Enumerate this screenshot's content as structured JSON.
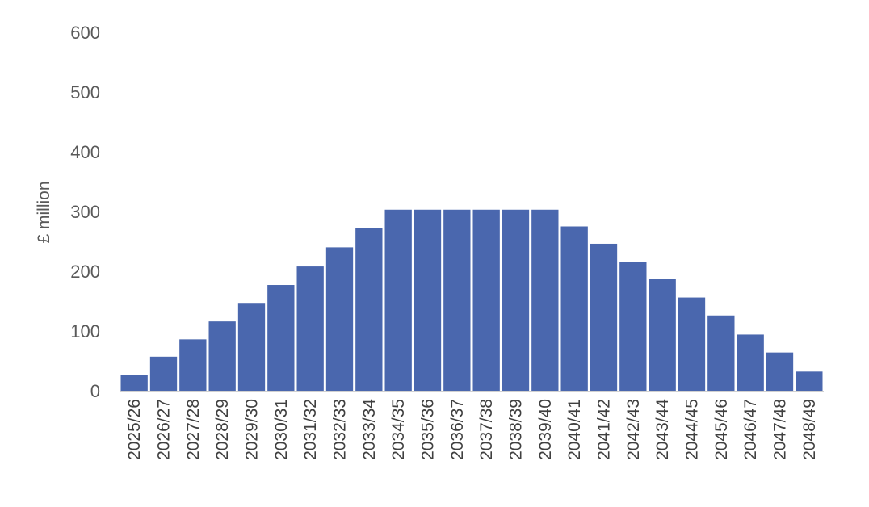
{
  "chart_data": {
    "type": "bar",
    "ylabel": "£ million",
    "ylim": [
      0,
      600
    ],
    "yticks": [
      0,
      100,
      200,
      300,
      400,
      500,
      600
    ],
    "grid": false,
    "bar_color": "#4a67ae",
    "categories": [
      "2025/26",
      "2026/27",
      "2027/28",
      "2028/29",
      "2029/30",
      "2030/31",
      "2031/32",
      "2032/33",
      "2033/34",
      "2034/35",
      "2035/36",
      "2036/37",
      "2037/38",
      "2038/39",
      "2039/40",
      "2040/41",
      "2041/42",
      "2042/43",
      "2043/44",
      "2044/45",
      "2045/46",
      "2046/47",
      "2047/48",
      "2048/49"
    ],
    "values": [
      27,
      57,
      86,
      116,
      147,
      177,
      208,
      240,
      272,
      303,
      303,
      303,
      303,
      303,
      303,
      275,
      246,
      216,
      187,
      156,
      126,
      94,
      64,
      32
    ]
  }
}
